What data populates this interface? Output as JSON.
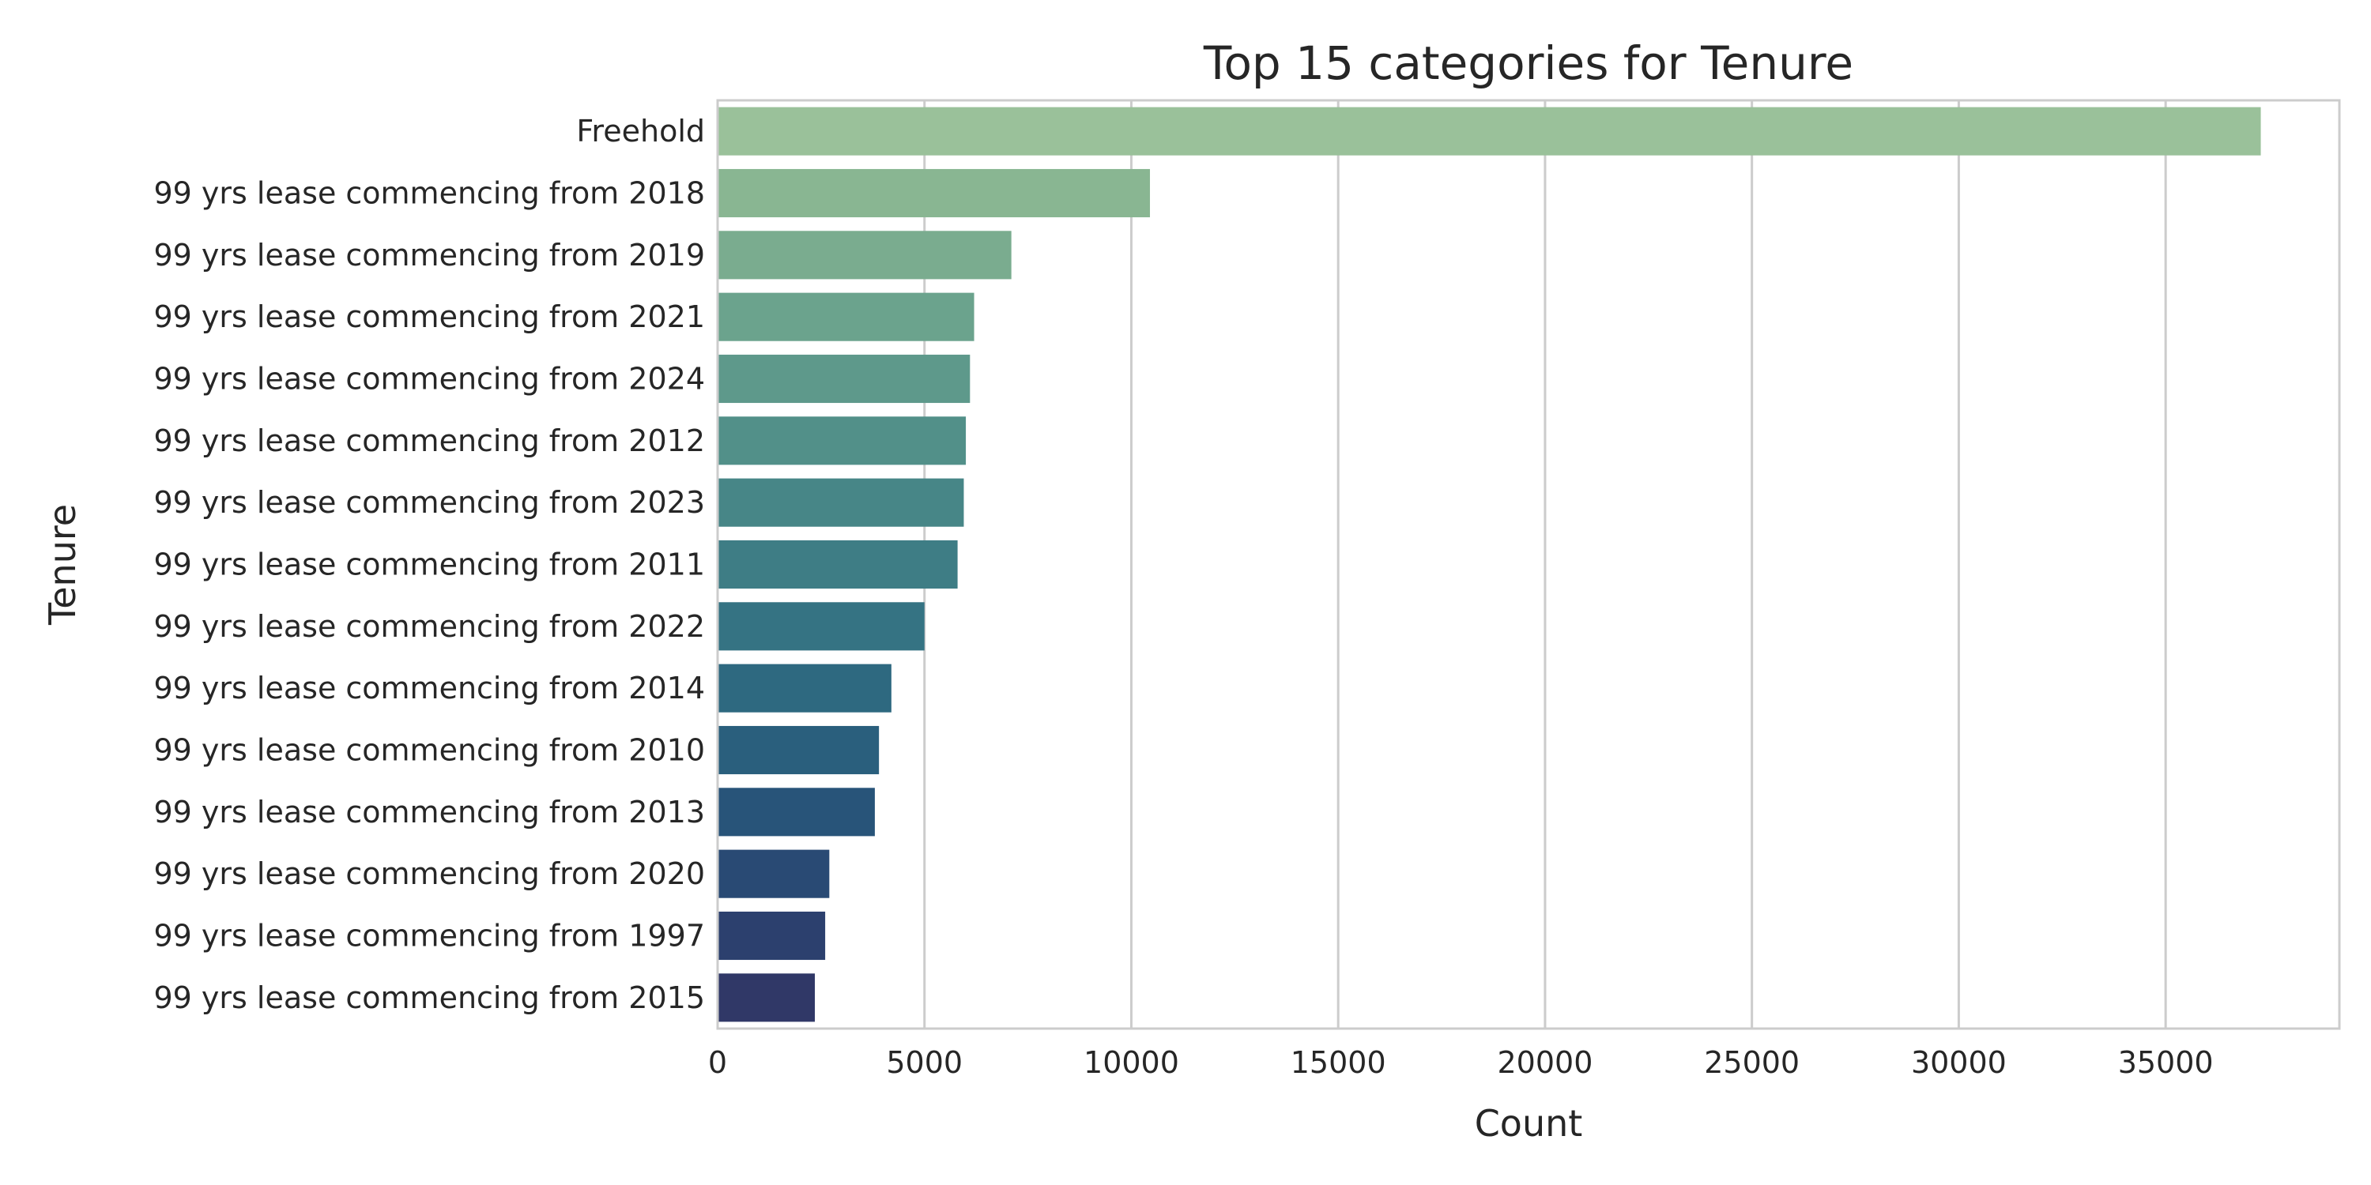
{
  "chart_data": {
    "type": "bar",
    "orientation": "horizontal",
    "title": "Top 15 categories for Tenure",
    "xlabel": "Count",
    "ylabel": "Tenure",
    "xlim": [
      0,
      39200
    ],
    "x_ticks": [
      0,
      5000,
      10000,
      15000,
      20000,
      25000,
      30000,
      35000
    ],
    "grid": "vertical",
    "legend": "none",
    "categories": [
      "Freehold",
      "99 yrs lease commencing from 2018",
      "99 yrs lease commencing from 2019",
      "99 yrs lease commencing from 2021",
      "99 yrs lease commencing from 2024",
      "99 yrs lease commencing from 2012",
      "99 yrs lease commencing from 2023",
      "99 yrs lease commencing from 2011",
      "99 yrs lease commencing from 2022",
      "99 yrs lease commencing from 2014",
      "99 yrs lease commencing from 2010",
      "99 yrs lease commencing from 2013",
      "99 yrs lease commencing from 2020",
      "99 yrs lease commencing from 1997",
      "99 yrs lease commencing from 2015"
    ],
    "values": [
      37300,
      10450,
      7100,
      6200,
      6100,
      6000,
      5950,
      5800,
      5000,
      4200,
      3900,
      3800,
      2700,
      2600,
      2350
    ],
    "colors": [
      "#9ac19a",
      "#89b692",
      "#7aac8f",
      "#6ba38d",
      "#5e998b",
      "#529089",
      "#478687",
      "#3e7d85",
      "#357383",
      "#2e6980",
      "#2a5f7d",
      "#285479",
      "#294a74",
      "#2c406e",
      "#303867"
    ]
  }
}
